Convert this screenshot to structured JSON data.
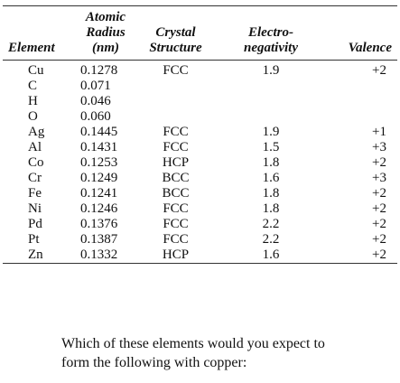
{
  "table": {
    "headers": {
      "element": "Element",
      "radius_line1": "Atomic",
      "radius_line2": "Radius",
      "radius_line3": "(nm)",
      "crystal_line1": "Crystal",
      "crystal_line2": "Structure",
      "en_line1": "Electro-",
      "en_line2": "negativity",
      "valence": "Valence"
    },
    "rows": [
      {
        "element": "Cu",
        "radius": "0.1278",
        "structure": "FCC",
        "en": "1.9",
        "valence": "+2"
      },
      {
        "element": "C",
        "radius": "0.071",
        "structure": "",
        "en": "",
        "valence": ""
      },
      {
        "element": "H",
        "radius": "0.046",
        "structure": "",
        "en": "",
        "valence": ""
      },
      {
        "element": "O",
        "radius": "0.060",
        "structure": "",
        "en": "",
        "valence": ""
      },
      {
        "element": "Ag",
        "radius": "0.1445",
        "structure": "FCC",
        "en": "1.9",
        "valence": "+1"
      },
      {
        "element": "Al",
        "radius": "0.1431",
        "structure": "FCC",
        "en": "1.5",
        "valence": "+3"
      },
      {
        "element": "Co",
        "radius": "0.1253",
        "structure": "HCP",
        "en": "1.8",
        "valence": "+2"
      },
      {
        "element": "Cr",
        "radius": "0.1249",
        "structure": "BCC",
        "en": "1.6",
        "valence": "+3"
      },
      {
        "element": "Fe",
        "radius": "0.1241",
        "structure": "BCC",
        "en": "1.8",
        "valence": "+2"
      },
      {
        "element": "Ni",
        "radius": "0.1246",
        "structure": "FCC",
        "en": "1.8",
        "valence": "+2"
      },
      {
        "element": "Pd",
        "radius": "0.1376",
        "structure": "FCC",
        "en": "2.2",
        "valence": "+2"
      },
      {
        "element": "Pt",
        "radius": "0.1387",
        "structure": "FCC",
        "en": "2.2",
        "valence": "+2"
      },
      {
        "element": "Zn",
        "radius": "0.1332",
        "structure": "HCP",
        "en": "1.6",
        "valence": "+2"
      }
    ]
  },
  "question": {
    "line1": "Which of these elements would you expect to",
    "line2": "form the following with copper:"
  }
}
